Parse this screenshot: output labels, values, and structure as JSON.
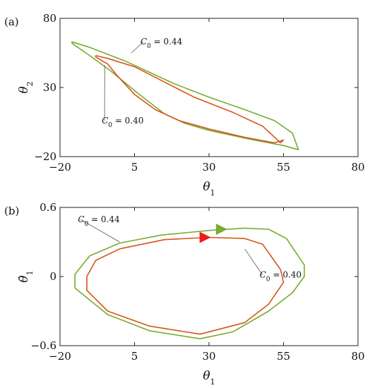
{
  "chart_data": [
    {
      "type": "line",
      "panel_label": "(a)",
      "xlabel": "θ",
      "xlabel_sub": "1",
      "ylabel": "θ",
      "ylabel_sub": "2",
      "xlim": [
        -20,
        80
      ],
      "ylim": [
        -20,
        80
      ],
      "xticks": [
        "−20",
        "5",
        "30",
        "55",
        "80"
      ],
      "xtick_values": [
        -20,
        5,
        30,
        55,
        80
      ],
      "yticks": [
        "−20",
        "30",
        "80"
      ],
      "ytick_values": [
        -20,
        30,
        80
      ],
      "grid": false,
      "series": [
        {
          "color": "#77ac30",
          "closed": true,
          "points": [
            [
              -16,
              63
            ],
            [
              -10,
              59
            ],
            [
              2,
              49
            ],
            [
              10,
              41
            ],
            [
              18,
              33
            ],
            [
              30,
              23
            ],
            [
              42,
              14
            ],
            [
              52,
              6
            ],
            [
              58,
              -3
            ],
            [
              60,
              -15
            ],
            [
              55,
              -12
            ],
            [
              45,
              -8
            ],
            [
              30,
              -1
            ],
            [
              22,
              4
            ],
            [
              15,
              11
            ],
            [
              6,
              26
            ],
            [
              -3,
              42
            ],
            [
              -10,
              53
            ],
            [
              -16,
              62
            ]
          ]
        },
        {
          "color": "#d95319",
          "closed": true,
          "points": [
            [
              -8,
              53
            ],
            [
              -4,
              51
            ],
            [
              5,
              45
            ],
            [
              15,
              34
            ],
            [
              25,
              23
            ],
            [
              38,
              12
            ],
            [
              48,
              2
            ],
            [
              54,
              -10
            ],
            [
              55,
              -8
            ],
            [
              52,
              -10
            ],
            [
              42,
              -6
            ],
            [
              30,
              0
            ],
            [
              20,
              6
            ],
            [
              12,
              14
            ],
            [
              5,
              25
            ],
            [
              -1,
              39
            ],
            [
              -4,
              47
            ],
            [
              -8,
              52
            ]
          ]
        }
      ],
      "annotations": [
        {
          "prefix": "C",
          "sub": "0",
          "text": " = 0.44",
          "x": 7,
          "y": 61,
          "x_end": 4,
          "y_end": 55
        },
        {
          "prefix": "C",
          "sub": "0",
          "text": " = 0.40",
          "x": -6,
          "y": 4,
          "x_end": -5,
          "y_end": 46
        }
      ]
    },
    {
      "type": "line",
      "panel_label": "(b)",
      "xlabel": "θ",
      "xlabel_sub": "1",
      "ylabel": "θ̇",
      "ylabel_sub": "1",
      "xlim": [
        -20,
        80
      ],
      "ylim": [
        -0.6,
        0.6
      ],
      "xticks": [
        "−20",
        "5",
        "30",
        "55",
        "80"
      ],
      "xtick_values": [
        -20,
        5,
        30,
        55,
        80
      ],
      "yticks": [
        "−0.6",
        "0",
        "0.6"
      ],
      "ytick_values": [
        -0.6,
        0,
        0.6
      ],
      "grid": false,
      "series": [
        {
          "color": "#77ac30",
          "closed": true,
          "points": [
            [
              -15,
              0.02
            ],
            [
              -10,
              0.18
            ],
            [
              0,
              0.29
            ],
            [
              14,
              0.36
            ],
            [
              30,
              0.4
            ],
            [
              42,
              0.42
            ],
            [
              50,
              0.41
            ],
            [
              56,
              0.33
            ],
            [
              62,
              0.1
            ],
            [
              62,
              0
            ],
            [
              58,
              -0.14
            ],
            [
              50,
              -0.3
            ],
            [
              38,
              -0.48
            ],
            [
              27,
              -0.54
            ],
            [
              10,
              -0.47
            ],
            [
              -4,
              -0.33
            ],
            [
              -15,
              -0.1
            ]
          ]
        },
        {
          "color": "#d95319",
          "closed": true,
          "points": [
            [
              -11,
              0.0
            ],
            [
              -8,
              0.14
            ],
            [
              0,
              0.24
            ],
            [
              15,
              0.32
            ],
            [
              30,
              0.34
            ],
            [
              42,
              0.33
            ],
            [
              48,
              0.28
            ],
            [
              54,
              0.06
            ],
            [
              55,
              -0.05
            ],
            [
              50,
              -0.24
            ],
            [
              42,
              -0.4
            ],
            [
              27,
              -0.5
            ],
            [
              10,
              -0.43
            ],
            [
              -4,
              -0.3
            ],
            [
              -11,
              -0.12
            ]
          ]
        }
      ],
      "markers": [
        {
          "x": 28.5,
          "y": 0.34,
          "color": "#ee1c1c",
          "direction": "right"
        },
        {
          "x": 34,
          "y": 0.41,
          "color": "#77ac30",
          "direction": "right"
        }
      ],
      "annotations": [
        {
          "prefix": "C",
          "sub": "0",
          "text": " = 0.44",
          "x": -14,
          "y": 0.47,
          "x_end": 0,
          "y_end": 0.3
        },
        {
          "prefix": "C",
          "sub": "0",
          "text": " = 0.40",
          "x": 47,
          "y": -0.01,
          "x_end": 42,
          "y_end": 0.24
        }
      ]
    }
  ]
}
